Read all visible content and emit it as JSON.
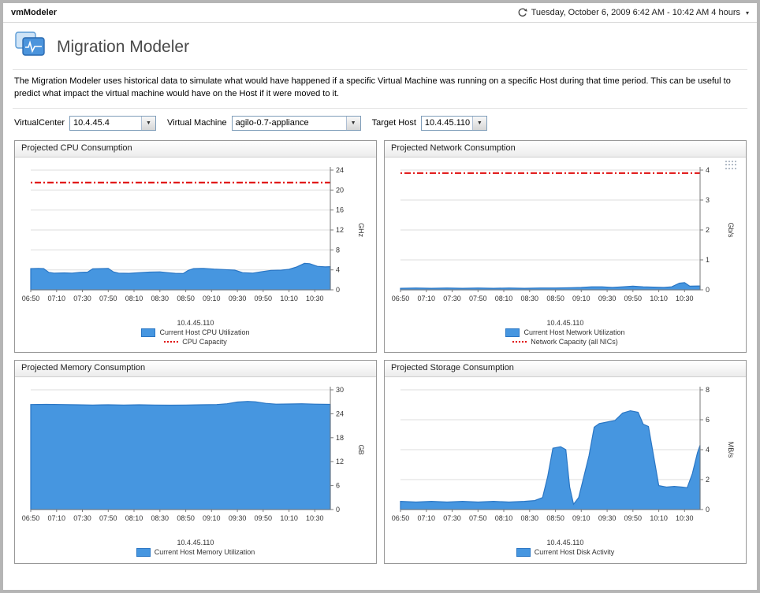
{
  "window": {
    "app_title": "vmModeler"
  },
  "timebar": {
    "range_text": "Tuesday, October 6, 2009 6:42 AM - 10:42 AM 4 hours",
    "icon": "clock-refresh-icon"
  },
  "header": {
    "title": "Migration Modeler",
    "description": "The Migration Modeler uses historical data to simulate what would have happened if a specific Virtual Machine was running on a specific Host during that time period. This can be useful to predict what impact the virtual machine would have on the Host if it were moved to it."
  },
  "filters": [
    {
      "label": "VirtualCenter",
      "value": "10.4.45.4"
    },
    {
      "label": "Virtual Machine",
      "value": "agilo-0.7-appliance"
    },
    {
      "label": "Target Host",
      "value": "10.4.45.110"
    }
  ],
  "colors": {
    "area_fill": "#4696e0",
    "area_stroke": "#2a76c4",
    "capacity_red": "#e01010",
    "grid": "#dedede",
    "axis": "#7a7a7a"
  },
  "chart_data": [
    {
      "type": "area",
      "title": "Projected CPU Consumption",
      "ylabel": "GHz",
      "ylim": [
        0,
        24
      ],
      "yticks": [
        0,
        4,
        8,
        12,
        16,
        20,
        24
      ],
      "x_range": [
        0,
        232
      ],
      "xticks": [
        0,
        20,
        40,
        60,
        80,
        100,
        120,
        140,
        160,
        180,
        200,
        220
      ],
      "xtick_labels": [
        "06:50",
        "07:10",
        "07:30",
        "07:50",
        "08:10",
        "08:30",
        "08:50",
        "09:10",
        "09:30",
        "09:50",
        "10:10",
        "10:30"
      ],
      "host_label": "10.4.45.110",
      "legend_position": "bottom",
      "grid": true,
      "series": [
        {
          "name": "Current Host CPU Utilization",
          "points": [
            [
              0,
              4.25
            ],
            [
              6,
              4.3
            ],
            [
              10,
              4.25
            ],
            [
              14,
              3.5
            ],
            [
              18,
              3.35
            ],
            [
              26,
              3.4
            ],
            [
              32,
              3.35
            ],
            [
              38,
              3.5
            ],
            [
              44,
              3.55
            ],
            [
              48,
              4.2
            ],
            [
              54,
              4.25
            ],
            [
              60,
              4.3
            ],
            [
              64,
              3.6
            ],
            [
              68,
              3.35
            ],
            [
              76,
              3.3
            ],
            [
              84,
              3.45
            ],
            [
              92,
              3.55
            ],
            [
              100,
              3.6
            ],
            [
              106,
              3.45
            ],
            [
              112,
              3.3
            ],
            [
              118,
              3.25
            ],
            [
              122,
              3.9
            ],
            [
              126,
              4.25
            ],
            [
              134,
              4.3
            ],
            [
              142,
              4.15
            ],
            [
              150,
              4.05
            ],
            [
              158,
              3.95
            ],
            [
              164,
              3.45
            ],
            [
              172,
              3.35
            ],
            [
              178,
              3.6
            ],
            [
              186,
              3.9
            ],
            [
              194,
              3.95
            ],
            [
              200,
              4.1
            ],
            [
              206,
              4.6
            ],
            [
              212,
              5.3
            ],
            [
              216,
              5.25
            ],
            [
              222,
              4.7
            ],
            [
              228,
              4.6
            ],
            [
              232,
              4.65
            ]
          ]
        }
      ],
      "capacity": {
        "name": "CPU Capacity",
        "value": 21.5
      }
    },
    {
      "type": "area",
      "title": "Projected Network Consumption",
      "ylabel": "Gb/s",
      "ylim": [
        0,
        4
      ],
      "yticks": [
        0,
        1,
        2,
        3,
        4
      ],
      "x_range": [
        0,
        232
      ],
      "xticks": [
        0,
        20,
        40,
        60,
        80,
        100,
        120,
        140,
        160,
        180,
        200,
        220
      ],
      "xtick_labels": [
        "06:50",
        "07:10",
        "07:30",
        "07:50",
        "08:10",
        "08:30",
        "08:50",
        "09:10",
        "09:30",
        "09:50",
        "10:10",
        "10:30"
      ],
      "host_label": "10.4.45.110",
      "legend_position": "bottom",
      "grid": true,
      "series": [
        {
          "name": "Current Host Network Utilization",
          "points": [
            [
              0,
              0.05
            ],
            [
              12,
              0.06
            ],
            [
              24,
              0.05
            ],
            [
              36,
              0.06
            ],
            [
              48,
              0.05
            ],
            [
              60,
              0.06
            ],
            [
              72,
              0.05
            ],
            [
              84,
              0.06
            ],
            [
              96,
              0.05
            ],
            [
              108,
              0.06
            ],
            [
              120,
              0.06
            ],
            [
              132,
              0.07
            ],
            [
              140,
              0.08
            ],
            [
              148,
              0.1
            ],
            [
              156,
              0.1
            ],
            [
              164,
              0.08
            ],
            [
              172,
              0.1
            ],
            [
              180,
              0.12
            ],
            [
              188,
              0.1
            ],
            [
              196,
              0.09
            ],
            [
              204,
              0.08
            ],
            [
              210,
              0.1
            ],
            [
              216,
              0.22
            ],
            [
              220,
              0.24
            ],
            [
              224,
              0.12
            ],
            [
              232,
              0.13
            ]
          ]
        }
      ],
      "capacity": {
        "name": "Network Capacity (all NICs)",
        "value": 3.9
      }
    },
    {
      "type": "area",
      "title": "Projected Memory Consumption",
      "ylabel": "GB",
      "ylim": [
        0,
        30
      ],
      "yticks": [
        0,
        6,
        12,
        18,
        24,
        30
      ],
      "x_range": [
        0,
        232
      ],
      "xticks": [
        0,
        20,
        40,
        60,
        80,
        100,
        120,
        140,
        160,
        180,
        200,
        220
      ],
      "xtick_labels": [
        "06:50",
        "07:10",
        "07:30",
        "07:50",
        "08:10",
        "08:30",
        "08:50",
        "09:10",
        "09:30",
        "09:50",
        "10:10",
        "10:30"
      ],
      "host_label": "10.4.45.110",
      "legend_position": "bottom",
      "grid": true,
      "series": [
        {
          "name": "Current Host Memory Utilization",
          "points": [
            [
              0,
              26.3
            ],
            [
              12,
              26.35
            ],
            [
              24,
              26.3
            ],
            [
              36,
              26.25
            ],
            [
              48,
              26.2
            ],
            [
              60,
              26.25
            ],
            [
              72,
              26.2
            ],
            [
              84,
              26.25
            ],
            [
              96,
              26.2
            ],
            [
              108,
              26.15
            ],
            [
              120,
              26.2
            ],
            [
              132,
              26.25
            ],
            [
              144,
              26.3
            ],
            [
              152,
              26.5
            ],
            [
              160,
              26.95
            ],
            [
              168,
              27.1
            ],
            [
              174,
              27.0
            ],
            [
              182,
              26.6
            ],
            [
              190,
              26.4
            ],
            [
              200,
              26.45
            ],
            [
              210,
              26.5
            ],
            [
              220,
              26.4
            ],
            [
              232,
              26.35
            ]
          ]
        }
      ]
    },
    {
      "type": "area",
      "title": "Projected Storage Consumption",
      "ylabel": "MB/s",
      "ylim": [
        0,
        8
      ],
      "yticks": [
        0,
        2,
        4,
        6,
        8
      ],
      "x_range": [
        0,
        232
      ],
      "xticks": [
        0,
        20,
        40,
        60,
        80,
        100,
        120,
        140,
        160,
        180,
        200,
        220
      ],
      "xtick_labels": [
        "06:50",
        "07:10",
        "07:30",
        "07:50",
        "08:10",
        "08:30",
        "08:50",
        "09:10",
        "09:30",
        "09:50",
        "10:10",
        "10:30"
      ],
      "host_label": "10.4.45.110",
      "legend_position": "bottom",
      "grid": true,
      "series": [
        {
          "name": "Current Host Disk Activity",
          "points": [
            [
              0,
              0.55
            ],
            [
              12,
              0.5
            ],
            [
              24,
              0.55
            ],
            [
              36,
              0.5
            ],
            [
              48,
              0.55
            ],
            [
              60,
              0.5
            ],
            [
              72,
              0.55
            ],
            [
              84,
              0.5
            ],
            [
              96,
              0.55
            ],
            [
              104,
              0.6
            ],
            [
              110,
              0.8
            ],
            [
              114,
              2.2
            ],
            [
              118,
              4.1
            ],
            [
              124,
              4.2
            ],
            [
              128,
              4.0
            ],
            [
              131,
              1.5
            ],
            [
              134,
              0.35
            ],
            [
              138,
              0.8
            ],
            [
              142,
              2.2
            ],
            [
              146,
              3.6
            ],
            [
              150,
              5.5
            ],
            [
              154,
              5.75
            ],
            [
              160,
              5.85
            ],
            [
              166,
              5.95
            ],
            [
              172,
              6.45
            ],
            [
              178,
              6.6
            ],
            [
              184,
              6.5
            ],
            [
              188,
              5.7
            ],
            [
              192,
              5.55
            ],
            [
              196,
              3.6
            ],
            [
              200,
              1.6
            ],
            [
              206,
              1.5
            ],
            [
              212,
              1.55
            ],
            [
              218,
              1.5
            ],
            [
              222,
              1.45
            ],
            [
              226,
              2.4
            ],
            [
              230,
              3.8
            ],
            [
              232,
              4.3
            ]
          ]
        }
      ]
    }
  ]
}
